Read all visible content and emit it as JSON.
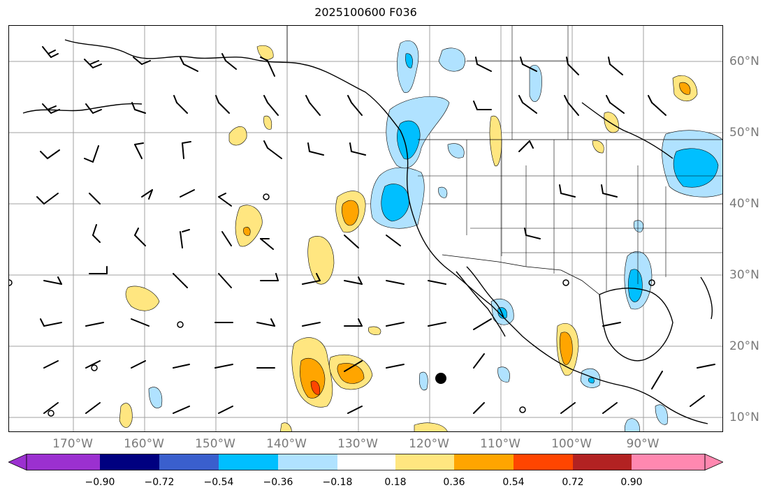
{
  "title": "2025100600 F036",
  "lon_labels": [
    "170°W",
    "160°W",
    "150°W",
    "140°W",
    "130°W",
    "120°W",
    "110°W",
    "100°W",
    "90°W"
  ],
  "lat_labels": [
    "60°N",
    "50°N",
    "40°N",
    "30°N",
    "20°N",
    "10°N"
  ],
  "colorbar": {
    "ticks": [
      "−0.90",
      "−0.72",
      "−0.54",
      "−0.36",
      "−0.18",
      "0.18",
      "0.36",
      "0.54",
      "0.72",
      "0.90"
    ],
    "colors": [
      "#9b30d0",
      "#000080",
      "#3a5fcd",
      "#00bfff",
      "#b0e2ff",
      "#ffffff",
      "#ffe680",
      "#ffa500",
      "#ff4500",
      "#b22222",
      "#ff88b0"
    ]
  },
  "colors": {
    "neg_light": "#b0e2ff",
    "neg_mid": "#00bfff",
    "pos_light": "#ffe680",
    "pos_mid": "#ffa500",
    "pos_high": "#ff4500",
    "grid": "#a0a0a0",
    "coast": "#000000"
  }
}
